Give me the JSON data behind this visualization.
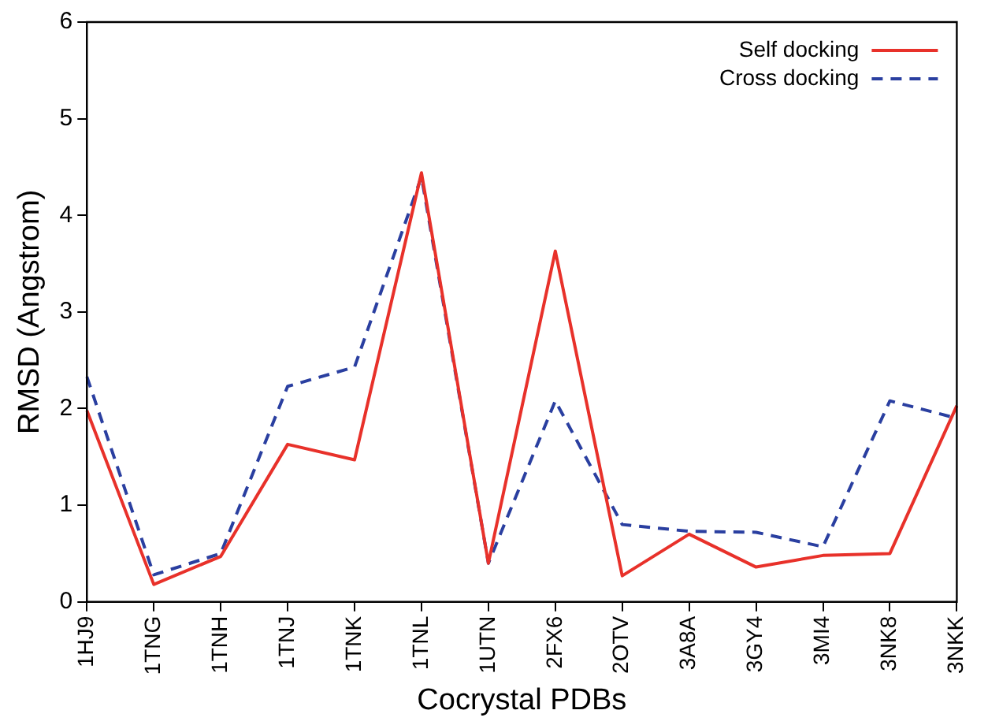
{
  "chart_data": {
    "type": "line",
    "xlabel": "Cocrystal PDBs",
    "ylabel": "RMSD (Angstrom)",
    "categories": [
      "1HJ9",
      "1TNG",
      "1TNH",
      "1TNJ",
      "1TNK",
      "1TNL",
      "1UTN",
      "2FX6",
      "2OTV",
      "3A8A",
      "3GY4",
      "3MI4",
      "3NK8",
      "3NKK"
    ],
    "series": [
      {
        "name": "Self docking",
        "color": "#e8312a",
        "line_style": "solid",
        "values": [
          1.98,
          0.18,
          0.47,
          1.63,
          1.47,
          4.44,
          0.4,
          3.63,
          0.27,
          0.7,
          0.36,
          0.48,
          0.5,
          2.03
        ]
      },
      {
        "name": "Cross docking",
        "color": "#2a3fa0",
        "line_style": "dashed",
        "values": [
          2.33,
          0.28,
          0.5,
          2.23,
          2.43,
          4.4,
          0.4,
          2.08,
          0.8,
          0.73,
          0.72,
          0.57,
          2.08,
          1.9
        ]
      }
    ],
    "ylim": [
      0,
      6
    ],
    "yticks": [
      0,
      1,
      2,
      3,
      4,
      5,
      6
    ],
    "grid": false,
    "legend": "top right",
    "marker": "none"
  }
}
